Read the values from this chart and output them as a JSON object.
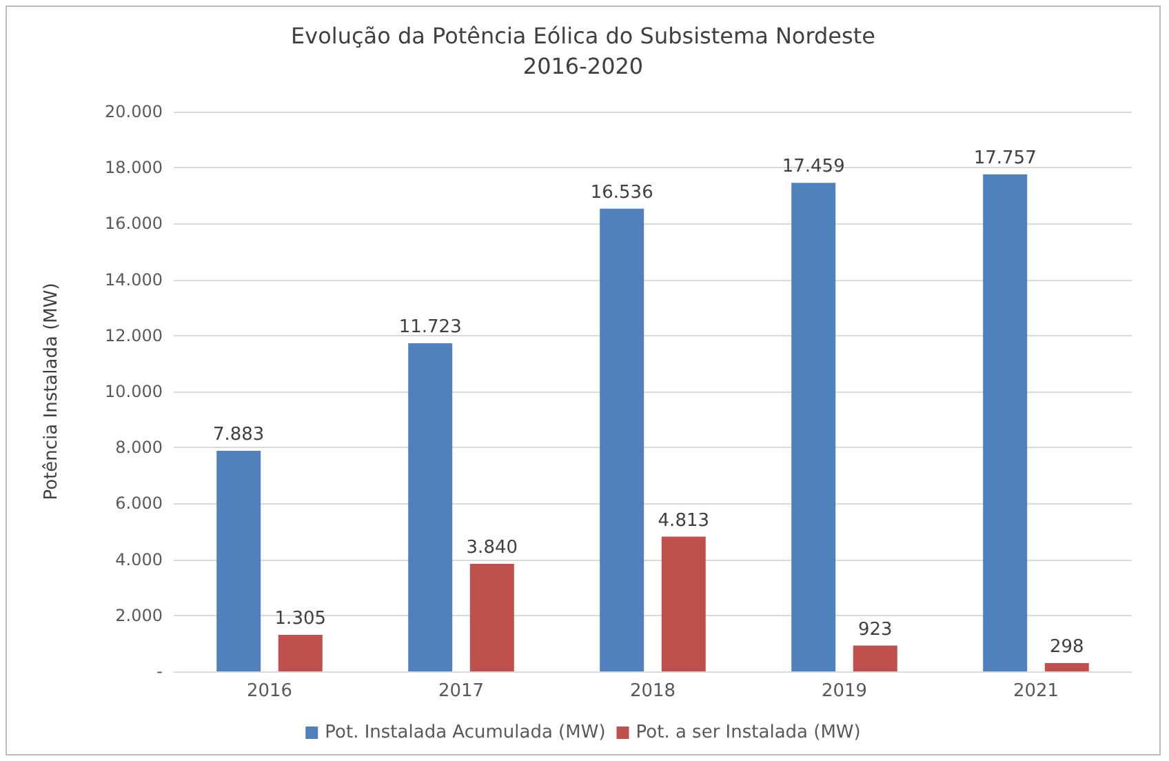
{
  "chart_data": {
    "type": "bar",
    "title": "Evolução da Potência Eólica do Subsistema Nordeste",
    "subtitle": "2016-2020",
    "ylabel": "Potência Instalada (MW)",
    "categories": [
      "2016",
      "2017",
      "2018",
      "2019",
      "2021"
    ],
    "series": [
      {
        "name": "Pot. Instalada Acumulada (MW)",
        "color": "#4f81bd",
        "values": [
          7883,
          11723,
          16536,
          17459,
          17757
        ],
        "value_labels": [
          "7.883",
          "11.723",
          "16.536",
          "17.459",
          "17.757"
        ]
      },
      {
        "name": "Pot. a ser Instalada (MW)",
        "color": "#c0504d",
        "values": [
          1305,
          3840,
          4813,
          923,
          298
        ],
        "value_labels": [
          "1.305",
          "3.840",
          "4.813",
          "923",
          "298"
        ]
      }
    ],
    "ylim": [
      0,
      20000
    ],
    "yticks": [
      {
        "value": 0,
        "label": "-"
      },
      {
        "value": 2000,
        "label": "2.000"
      },
      {
        "value": 4000,
        "label": "4.000"
      },
      {
        "value": 6000,
        "label": "6.000"
      },
      {
        "value": 8000,
        "label": "8.000"
      },
      {
        "value": 10000,
        "label": "10.000"
      },
      {
        "value": 12000,
        "label": "12.000"
      },
      {
        "value": 14000,
        "label": "14.000"
      },
      {
        "value": 16000,
        "label": "16.000"
      },
      {
        "value": 18000,
        "label": "18.000"
      },
      {
        "value": 20000,
        "label": "20.000"
      }
    ],
    "grid": "y",
    "legend": "bottom"
  }
}
